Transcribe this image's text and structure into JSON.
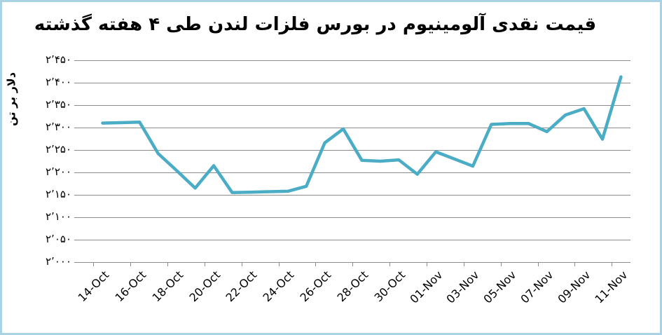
{
  "title": "قیمت نقدی آلومینیوم در بورس فلزات لندن طی ۴ هفته گذشته",
  "y_axis": {
    "title": "دلار بر تن",
    "tick_labels": [
      "۲٬۴۵۰",
      "۲٬۴۰۰",
      "۲٬۳۵۰",
      "۲٬۳۰۰",
      "۲٬۲۵۰",
      "۲٬۲۰۰",
      "۲٬۱۵۰",
      "۲٬۱۰۰",
      "۲٬۰۵۰",
      "۲٬۰۰۰"
    ],
    "tick_values": [
      2450,
      2400,
      2350,
      2300,
      2250,
      2200,
      2150,
      2100,
      2050,
      2000
    ]
  },
  "x_axis": {
    "tick_labels": [
      "14-Oct",
      "16-Oct",
      "18-Oct",
      "20-Oct",
      "22-Oct",
      "24-Oct",
      "26-Oct",
      "28-Oct",
      "30-Oct",
      "01-Nov",
      "03-Nov",
      "05-Nov",
      "07-Nov",
      "09-Nov",
      "11-Nov"
    ]
  },
  "colors": {
    "line": "#4BACC6",
    "grid": "#8C8C8C",
    "text": "#000000",
    "frame": "#A9D2E3"
  },
  "chart_data": {
    "type": "line",
    "title": "قیمت نقدی آلومینیوم در بورس فلزات لندن طی ۴ هفته گذشته",
    "ylabel": "دلار بر تن",
    "ylim": [
      2000,
      2450
    ],
    "y_tick_step": 50,
    "grid": "horizontal",
    "legend_position": "none",
    "x_tick_labels_shown": [
      "14-Oct",
      "16-Oct",
      "18-Oct",
      "20-Oct",
      "22-Oct",
      "24-Oct",
      "26-Oct",
      "28-Oct",
      "30-Oct",
      "01-Nov",
      "03-Nov",
      "05-Nov",
      "07-Nov",
      "09-Nov",
      "11-Nov"
    ],
    "x": [
      "14-Oct",
      "15-Oct",
      "16-Oct",
      "17-Oct",
      "18-Oct",
      "19-Oct",
      "20-Oct",
      "21-Oct",
      "22-Oct",
      "23-Oct",
      "24-Oct",
      "25-Oct",
      "26-Oct",
      "27-Oct",
      "28-Oct",
      "29-Oct",
      "30-Oct",
      "31-Oct",
      "01-Nov",
      "02-Nov",
      "03-Nov",
      "04-Nov",
      "05-Nov",
      "06-Nov",
      "07-Nov",
      "08-Nov",
      "09-Nov",
      "10-Nov",
      "11-Nov"
    ],
    "series": [
      {
        "color": "#4BACC6",
        "values": [
          2310,
          2311,
          2312,
          2242,
          2204,
          2165,
          2215,
          2155,
          2156,
          2157,
          2158,
          2169,
          2266,
          2297,
          2227,
          2225,
          2228,
          2196,
          2246,
          2230,
          2214,
          2307,
          2309,
          2309,
          2291,
          2328,
          2342,
          2274,
          2413
        ]
      }
    ]
  }
}
